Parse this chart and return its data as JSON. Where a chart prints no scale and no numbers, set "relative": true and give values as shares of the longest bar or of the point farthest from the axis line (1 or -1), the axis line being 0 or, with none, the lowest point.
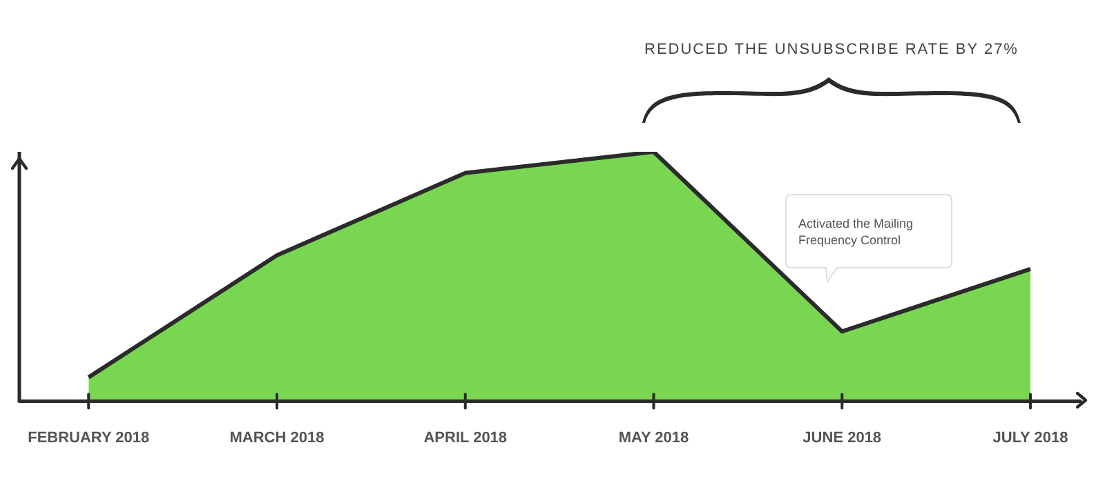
{
  "chart_data": {
    "type": "area",
    "relative": true,
    "categories": [
      "FEBRUARY 2018",
      "MARCH 2018",
      "APRIL 2018",
      "MAY 2018",
      "JUNE 2018",
      "JULY 2018"
    ],
    "series": [
      {
        "color": "#79d651",
        "values": [
          0.096,
          0.585,
          0.915,
          1,
          0.28,
          0.53
        ]
      }
    ],
    "annotations": [
      "REDUCED THE UNSUBSCRIBE RATE BY 27%",
      "Activated the Mailing Frequency Control"
    ],
    "grid": false,
    "legend": false
  }
}
